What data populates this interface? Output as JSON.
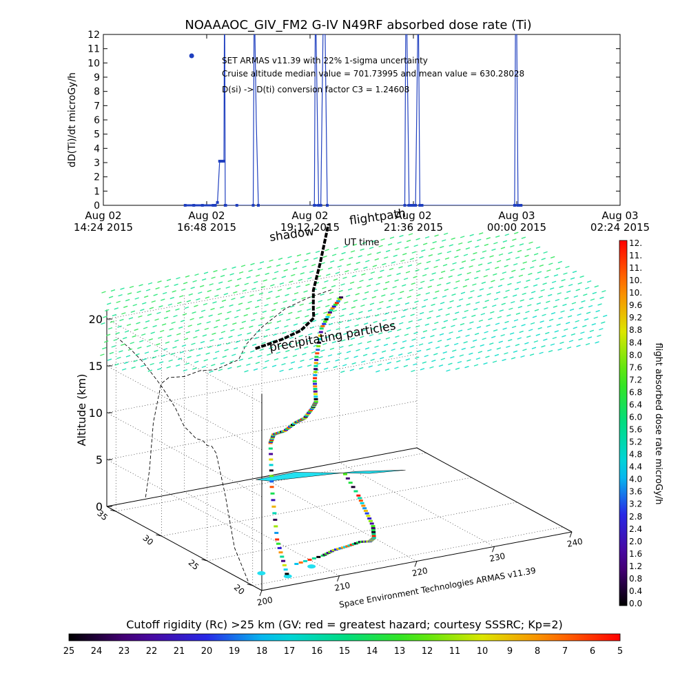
{
  "chart_data": [
    {
      "type": "line",
      "title": "NOAAAOC_GIV_FM2 G-IV    N49RF  absorbed dose rate (Ti)",
      "ylabel": "dD(Ti)/dt microGy/h",
      "xlabel": "UT time",
      "ylim": [
        0,
        12
      ],
      "y_ticks": [
        "0",
        "1",
        "2",
        "3",
        "4",
        "5",
        "6",
        "7",
        "8",
        "9",
        "10",
        "11",
        "12"
      ],
      "x_ticks": [
        {
          "line1": "Aug 02",
          "line2": "14:24 2015"
        },
        {
          "line1": "Aug 02",
          "line2": "16:48 2015"
        },
        {
          "line1": "Aug 02",
          "line2": "19:12 2015"
        },
        {
          "line1": "Aug 02",
          "line2": "21:36 2015"
        },
        {
          "line1": "Aug 03",
          "line2": "00:00 2015"
        },
        {
          "line1": "Aug 03",
          "line2": "02:24 2015"
        }
      ],
      "x_range_hours": [
        14.4,
        26.4
      ],
      "series": [
        {
          "color": "#1f3fbf",
          "x_hours": [
            16.3,
            16.5,
            16.7,
            16.95,
            17.0,
            17.05,
            17.1,
            17.15,
            17.2,
            17.21,
            17.22,
            17.23,
            17.24,
            17.5,
            17.88,
            17.9,
            17.92,
            17.95,
            18.0,
            19.3,
            19.32,
            19.34,
            19.4,
            19.45,
            19.5,
            19.55,
            19.6,
            21.4,
            21.42,
            21.45,
            21.5,
            21.52,
            21.55,
            21.6,
            21.65,
            21.7,
            21.72,
            21.75,
            21.8,
            23.95,
            23.97,
            24.0,
            24.03,
            24.05,
            24.1
          ],
          "y": [
            0,
            0,
            0,
            0,
            0,
            0.2,
            3.1,
            3.1,
            3.1,
            14,
            14,
            0,
            0,
            0,
            0,
            14,
            14,
            6,
            0,
            0,
            14,
            14,
            0,
            0,
            14,
            14,
            0,
            0,
            14,
            14,
            0,
            0,
            0,
            0,
            0,
            14,
            14,
            0,
            0,
            0,
            14,
            14,
            0,
            0,
            0
          ]
        }
      ],
      "markers": [
        {
          "x_hours": 16.45,
          "y": 10.5
        }
      ],
      "annotations": [
        "SET ARMAS v11.39 with 22% 1-sigma uncertainty",
        "Cruise altitude median value = 701.73995 and mean value = 630.28028",
        "D(si) -> D(ti) conversion factor C3 = 1.24608"
      ],
      "grid": false
    },
    {
      "type": "scatter",
      "subtype": "3d-flight-track",
      "zlabel": "Altitude (km)",
      "z_ticks": [
        "0",
        "5",
        "10",
        "15",
        "20"
      ],
      "zlim": [
        0,
        20
      ],
      "lon_ticks": [
        "200",
        "210",
        "220",
        "230",
        "240"
      ],
      "lon_range": [
        200,
        240
      ],
      "lat_ticks": [
        "20",
        "25",
        "30",
        "35"
      ],
      "lat_range": [
        19,
        36
      ],
      "overlay_labels": [
        "shadow",
        "flightpath",
        "precipitating particles"
      ],
      "credit": "Space Environment Technologies ARMAS v11.39",
      "flightpath_shadow": [
        [
          208,
          22.0
        ],
        [
          212,
          22.5
        ],
        [
          214,
          23.0
        ],
        [
          216,
          23.2
        ],
        [
          218,
          23.5
        ],
        [
          219,
          23.3
        ],
        [
          220,
          23.7
        ],
        [
          222,
          25.5
        ],
        [
          224,
          28.0
        ],
        [
          226,
          30.5
        ],
        [
          229,
          34.8
        ]
      ],
      "flightpath_3d": [
        [
          205,
          20.5,
          0.2
        ],
        [
          205.5,
          22.0,
          3.0
        ],
        [
          206,
          23.0,
          8.0
        ],
        [
          207,
          24.0,
          12.0
        ],
        [
          208,
          24.5,
          12.5
        ],
        [
          210,
          25.0,
          12.3
        ],
        [
          212,
          25.5,
          12.6
        ],
        [
          214,
          26.2,
          12.4
        ],
        [
          216,
          27.0,
          12.8
        ],
        [
          217,
          27.5,
          13.0
        ],
        [
          218,
          28.5,
          14.5
        ],
        [
          220,
          30.0,
          16.0
        ],
        [
          223,
          32.0,
          17.5
        ],
        [
          226,
          33.5,
          18.2
        ],
        [
          229,
          34.8,
          18.6
        ]
      ],
      "shadow_line_3d": [
        [
          208,
          26.5,
          20.6
        ],
        [
          212,
          27.0,
          20.7
        ],
        [
          215,
          27.5,
          20.9
        ],
        [
          217,
          28.3,
          21.0
        ],
        [
          218,
          28.6,
          21.2
        ],
        [
          219,
          29.5,
          21.5
        ],
        [
          221,
          31.2,
          22.3
        ],
        [
          224,
          33.0,
          23.8
        ],
        [
          228,
          35.5,
          26.0
        ]
      ],
      "precip_polygon": [
        [
          219,
          35.8
        ],
        [
          224,
          35.8
        ],
        [
          231,
          33.5
        ],
        [
          235,
          33.0
        ],
        [
          230,
          34.2
        ],
        [
          224,
          34.8
        ],
        [
          220,
          35.2
        ]
      ]
    },
    {
      "type": "heatmap",
      "subtype": "colorbar-vertical",
      "label": "flight absorbed dose rate microGy/h",
      "range": [
        0,
        12
      ],
      "tick_labels": [
        "0.0",
        "0.4",
        "0.8",
        "1.2",
        "1.6",
        "2.0",
        "2.4",
        "2.8",
        "3.2",
        "3.6",
        "4.0",
        "4.4",
        "4.8",
        "5.2",
        "5.6",
        "6.0",
        "6.4",
        "6.8",
        "7.2",
        "7.6",
        "8.0",
        "8.4",
        "8.8",
        "9.2",
        "9.6",
        "10.",
        "10.",
        "11.",
        "11.",
        "12."
      ]
    },
    {
      "type": "heatmap",
      "subtype": "colorbar-horizontal",
      "label": "Cutoff rigidity (Rc) >25 km (GV: red = greatest hazard; courtesy SSSRC; Kp=2)",
      "range": [
        25,
        5
      ],
      "tick_labels": [
        "25",
        "24",
        "23",
        "22",
        "21",
        "20",
        "19",
        "18",
        "17",
        "16",
        "15",
        "14",
        "13",
        "12",
        "11",
        "10",
        "9",
        "8",
        "7",
        "6",
        "5"
      ]
    }
  ]
}
